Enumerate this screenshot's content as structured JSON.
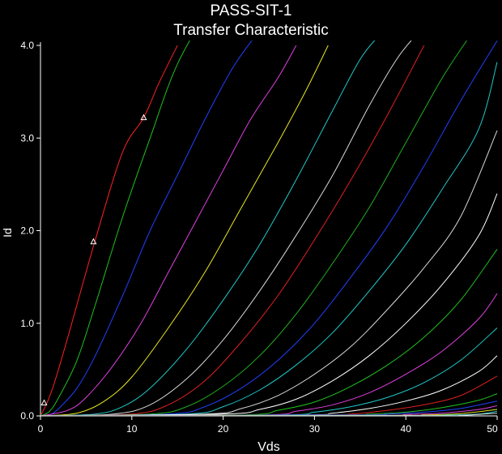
{
  "chart_data": {
    "type": "line",
    "title": "PASS-SIT-1",
    "subtitle": "Transfer Characteristic",
    "xlabel": "Vds",
    "ylabel": "Id",
    "xlim": [
      0,
      50
    ],
    "ylim": [
      0,
      4.0
    ],
    "x_ticks": [
      "0",
      "10",
      "20",
      "30",
      "40",
      "50"
    ],
    "y_ticks": [
      "0.0",
      "1.0",
      "2.0",
      "3.0",
      "4.0"
    ],
    "x_tick_values": [
      0,
      10,
      20,
      30,
      40,
      50
    ],
    "y_tick_values": [
      0,
      1,
      2,
      3,
      4
    ],
    "grid": false,
    "series": [
      {
        "color": "#ff2020",
        "points": [
          [
            0,
            0
          ],
          [
            0.75,
            0.15
          ],
          [
            1.5,
            0.35
          ],
          [
            3,
            0.85
          ],
          [
            6,
            1.9
          ],
          [
            9,
            2.85
          ],
          [
            11.3,
            3.22
          ],
          [
            13,
            3.6
          ],
          [
            15,
            4.0
          ]
        ]
      },
      {
        "color": "#20c020",
        "points": [
          [
            0,
            0
          ],
          [
            1,
            0.05
          ],
          [
            2,
            0.2
          ],
          [
            4,
            0.6
          ],
          [
            6,
            1.2
          ],
          [
            9,
            2.15
          ],
          [
            12,
            3.0
          ],
          [
            15,
            3.8
          ],
          [
            19,
            4.5
          ]
        ]
      },
      {
        "color": "#2040ff",
        "points": [
          [
            0,
            0
          ],
          [
            1,
            0.01
          ],
          [
            2,
            0.08
          ],
          [
            4,
            0.3
          ],
          [
            6,
            0.65
          ],
          [
            9,
            1.3
          ],
          [
            12,
            2.0
          ],
          [
            15,
            2.6
          ],
          [
            18,
            3.2
          ],
          [
            21,
            3.75
          ],
          [
            23.5,
            4.1
          ]
        ]
      },
      {
        "color": "#e040e0",
        "points": [
          [
            0,
            0
          ],
          [
            3,
            0.06
          ],
          [
            5,
            0.2
          ],
          [
            8,
            0.55
          ],
          [
            11,
            1.0
          ],
          [
            14,
            1.55
          ],
          [
            17,
            2.1
          ],
          [
            20,
            2.65
          ],
          [
            23,
            3.2
          ],
          [
            26,
            3.65
          ],
          [
            28,
            4.0
          ]
        ]
      },
      {
        "color": "#e8e820",
        "points": [
          [
            0,
            0
          ],
          [
            4,
            0.03
          ],
          [
            7,
            0.16
          ],
          [
            10,
            0.42
          ],
          [
            14,
            0.95
          ],
          [
            18,
            1.55
          ],
          [
            22,
            2.25
          ],
          [
            26,
            2.95
          ],
          [
            29,
            3.5
          ],
          [
            31.5,
            4.0
          ]
        ]
      },
      {
        "color": "#20c8c8",
        "points": [
          [
            0,
            0
          ],
          [
            6,
            0.02
          ],
          [
            9,
            0.1
          ],
          [
            12,
            0.3
          ],
          [
            16,
            0.72
          ],
          [
            20,
            1.25
          ],
          [
            24,
            1.85
          ],
          [
            28,
            2.55
          ],
          [
            32,
            3.3
          ],
          [
            35,
            3.85
          ],
          [
            37,
            4.1
          ]
        ]
      },
      {
        "color": "#d8d8d8",
        "points": [
          [
            0,
            0
          ],
          [
            8,
            0.02
          ],
          [
            12,
            0.12
          ],
          [
            16,
            0.4
          ],
          [
            20,
            0.82
          ],
          [
            24,
            1.35
          ],
          [
            28,
            1.95
          ],
          [
            32,
            2.6
          ],
          [
            36,
            3.35
          ],
          [
            39,
            3.85
          ],
          [
            41,
            4.1
          ]
        ]
      },
      {
        "color": "#e02020",
        "points": [
          [
            0,
            0
          ],
          [
            10,
            0.02
          ],
          [
            14,
            0.12
          ],
          [
            18,
            0.38
          ],
          [
            22,
            0.8
          ],
          [
            26,
            1.3
          ],
          [
            30,
            1.9
          ],
          [
            34,
            2.55
          ],
          [
            38,
            3.25
          ],
          [
            42,
            4.0
          ]
        ]
      },
      {
        "color": "#20b020",
        "points": [
          [
            0,
            0
          ],
          [
            12,
            0.02
          ],
          [
            16,
            0.1
          ],
          [
            20,
            0.32
          ],
          [
            24,
            0.65
          ],
          [
            28,
            1.1
          ],
          [
            32,
            1.65
          ],
          [
            36,
            2.25
          ],
          [
            40,
            2.95
          ],
          [
            44,
            3.65
          ],
          [
            47,
            4.1
          ]
        ]
      },
      {
        "color": "#2040ff",
        "points": [
          [
            0,
            0
          ],
          [
            14,
            0.02
          ],
          [
            18,
            0.1
          ],
          [
            22,
            0.3
          ],
          [
            26,
            0.6
          ],
          [
            30,
            1.0
          ],
          [
            34,
            1.5
          ],
          [
            38,
            2.05
          ],
          [
            42,
            2.7
          ],
          [
            46,
            3.4
          ],
          [
            50,
            4.05
          ]
        ]
      },
      {
        "color": "#20c8c8",
        "points": [
          [
            0,
            0
          ],
          [
            16,
            0.02
          ],
          [
            20,
            0.1
          ],
          [
            24,
            0.28
          ],
          [
            28,
            0.55
          ],
          [
            32,
            0.9
          ],
          [
            36,
            1.35
          ],
          [
            40,
            1.85
          ],
          [
            44,
            2.45
          ],
          [
            48,
            3.1
          ],
          [
            50,
            3.82
          ]
        ]
      },
      {
        "color": "#d8d8d8",
        "points": [
          [
            0,
            0
          ],
          [
            18,
            0.02
          ],
          [
            22,
            0.08
          ],
          [
            26,
            0.22
          ],
          [
            30,
            0.45
          ],
          [
            34,
            0.75
          ],
          [
            38,
            1.15
          ],
          [
            42,
            1.6
          ],
          [
            46,
            2.15
          ],
          [
            50,
            3.08
          ]
        ]
      },
      {
        "color": "#ffffff",
        "points": [
          [
            0,
            0
          ],
          [
            20,
            0.02
          ],
          [
            24,
            0.07
          ],
          [
            28,
            0.18
          ],
          [
            32,
            0.38
          ],
          [
            36,
            0.65
          ],
          [
            40,
            1.0
          ],
          [
            44,
            1.42
          ],
          [
            48,
            1.95
          ],
          [
            50,
            2.4
          ]
        ]
      },
      {
        "color": "#20c020",
        "points": [
          [
            0,
            0
          ],
          [
            22,
            0.01
          ],
          [
            26,
            0.06
          ],
          [
            30,
            0.15
          ],
          [
            34,
            0.32
          ],
          [
            38,
            0.55
          ],
          [
            42,
            0.85
          ],
          [
            46,
            1.25
          ],
          [
            50,
            1.8
          ]
        ]
      },
      {
        "color": "#e040e0",
        "points": [
          [
            0,
            0
          ],
          [
            24,
            0.01
          ],
          [
            28,
            0.05
          ],
          [
            32,
            0.12
          ],
          [
            36,
            0.25
          ],
          [
            40,
            0.45
          ],
          [
            44,
            0.7
          ],
          [
            48,
            1.05
          ],
          [
            50,
            1.32
          ]
        ]
      },
      {
        "color": "#20c8c8",
        "points": [
          [
            0,
            0
          ],
          [
            26,
            0.01
          ],
          [
            30,
            0.04
          ],
          [
            34,
            0.1
          ],
          [
            38,
            0.2
          ],
          [
            42,
            0.36
          ],
          [
            46,
            0.6
          ],
          [
            50,
            0.95
          ]
        ]
      },
      {
        "color": "#ffffff",
        "points": [
          [
            0,
            0
          ],
          [
            28,
            0.01
          ],
          [
            32,
            0.03
          ],
          [
            36,
            0.08
          ],
          [
            40,
            0.16
          ],
          [
            44,
            0.28
          ],
          [
            48,
            0.48
          ],
          [
            50,
            0.65
          ]
        ]
      },
      {
        "color": "#e02020",
        "points": [
          [
            0,
            0
          ],
          [
            30,
            0.01
          ],
          [
            34,
            0.02
          ],
          [
            38,
            0.06
          ],
          [
            42,
            0.12
          ],
          [
            46,
            0.22
          ],
          [
            50,
            0.43
          ]
        ]
      },
      {
        "color": "#20c020",
        "points": [
          [
            0,
            0
          ],
          [
            32,
            0.01
          ],
          [
            36,
            0.02
          ],
          [
            40,
            0.04
          ],
          [
            44,
            0.09
          ],
          [
            48,
            0.17
          ],
          [
            50,
            0.24
          ]
        ]
      },
      {
        "color": "#2040ff",
        "points": [
          [
            0,
            0
          ],
          [
            34,
            0.01
          ],
          [
            38,
            0.02
          ],
          [
            42,
            0.04
          ],
          [
            46,
            0.08
          ],
          [
            50,
            0.16
          ]
        ]
      },
      {
        "color": "#e040e0",
        "points": [
          [
            0,
            0
          ],
          [
            36,
            0.005
          ],
          [
            40,
            0.015
          ],
          [
            44,
            0.03
          ],
          [
            48,
            0.07
          ],
          [
            50,
            0.11
          ]
        ]
      },
      {
        "color": "#e8e820",
        "points": [
          [
            0,
            0
          ],
          [
            38,
            0.005
          ],
          [
            42,
            0.01
          ],
          [
            46,
            0.025
          ],
          [
            50,
            0.07
          ]
        ]
      },
      {
        "color": "#20c8c8",
        "points": [
          [
            0,
            0
          ],
          [
            40,
            0.003
          ],
          [
            44,
            0.008
          ],
          [
            48,
            0.02
          ],
          [
            50,
            0.05
          ]
        ]
      },
      {
        "color": "#d8d8d8",
        "points": [
          [
            0,
            0
          ],
          [
            42,
            0.002
          ],
          [
            46,
            0.006
          ],
          [
            50,
            0.03
          ]
        ]
      }
    ],
    "markers": [
      {
        "x": 0.4,
        "y": 0.14
      },
      {
        "x": 5.8,
        "y": 1.88
      },
      {
        "x": 11.3,
        "y": 3.22
      }
    ]
  }
}
